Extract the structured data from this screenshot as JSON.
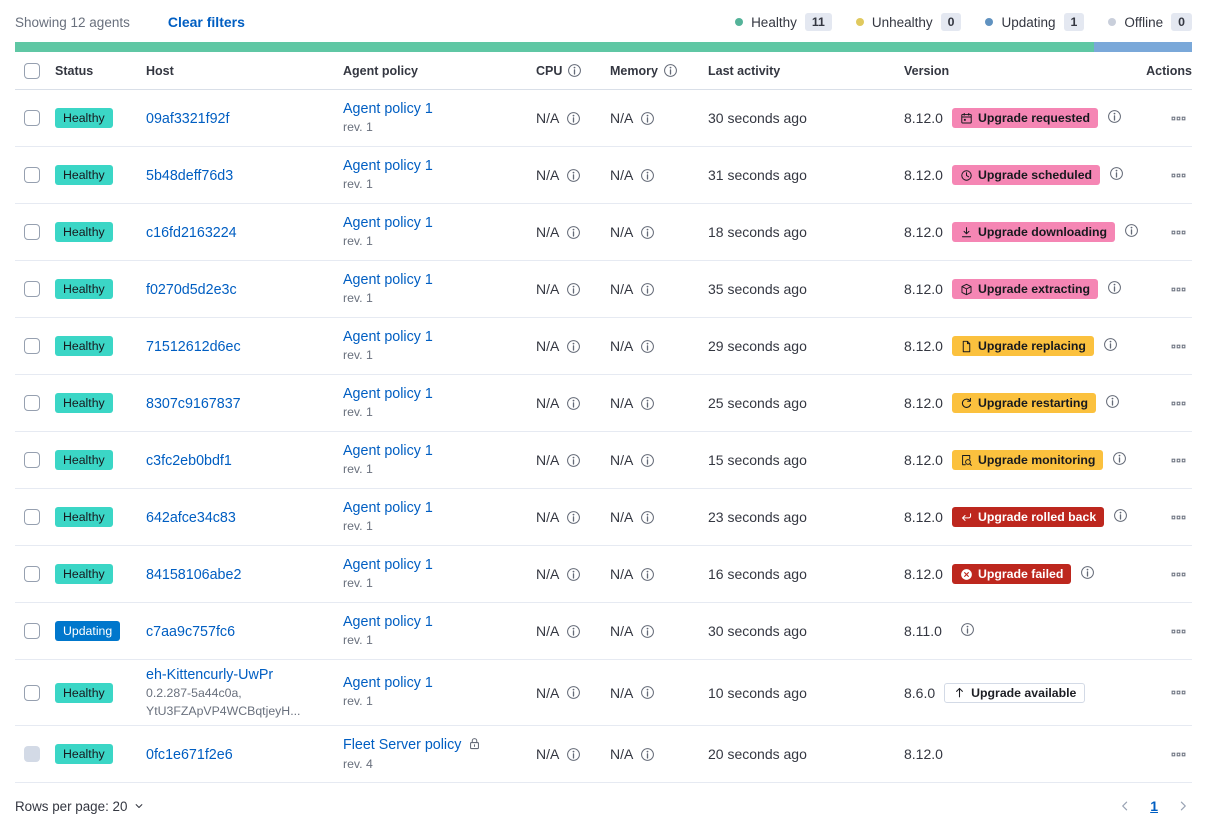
{
  "colors": {
    "healthy_badge": "#3BD6C6",
    "updating_badge": "#0077CC",
    "pink_badge": "#F586B4",
    "warning_badge": "#FBC13E",
    "danger_badge": "#BD271E",
    "link_blue": "#005EC2",
    "bar_healthy": "#5FC7A4",
    "bar_updating": "#7AA8D9",
    "dot_healthy": "#54B399",
    "dot_unhealthy": "#E0C95E",
    "dot_updating": "#6092C0",
    "dot_offline": "#C9CFDB"
  },
  "topbar": {
    "showing": "Showing 12 agents",
    "clear_filters": "Clear filters",
    "legend": [
      {
        "label": "Healthy",
        "count": "11",
        "dot": "dot-healthy"
      },
      {
        "label": "Unhealthy",
        "count": "0",
        "dot": "dot-unhealthy"
      },
      {
        "label": "Updating",
        "count": "1",
        "dot": "dot-updating"
      },
      {
        "label": "Offline",
        "count": "0",
        "dot": "dot-offline"
      }
    ]
  },
  "health_bar": {
    "segments": [
      {
        "status": "healthy",
        "fraction": 0.9167
      },
      {
        "status": "updating",
        "fraction": 0.0833
      }
    ]
  },
  "table": {
    "headers": {
      "status": "Status",
      "host": "Host",
      "policy": "Agent policy",
      "cpu": "CPU",
      "memory": "Memory",
      "last_activity": "Last activity",
      "version": "Version",
      "actions": "Actions"
    },
    "rows": [
      {
        "status": {
          "label": "Healthy",
          "variant": "healthy"
        },
        "host": {
          "name": "09af3321f92f",
          "sub": []
        },
        "policy": {
          "name": "Agent policy 1",
          "rev": "rev. 1",
          "locked": false
        },
        "cpu": "N/A",
        "memory": "N/A",
        "last_activity": "30 seconds ago",
        "version": "8.12.0",
        "version_info": false,
        "upgrade": {
          "label": "Upgrade requested",
          "variant": "pink",
          "icon": "calendar-icon",
          "info": true
        },
        "checkbox_disabled": false
      },
      {
        "status": {
          "label": "Healthy",
          "variant": "healthy"
        },
        "host": {
          "name": "5b48deff76d3",
          "sub": []
        },
        "policy": {
          "name": "Agent policy 1",
          "rev": "rev. 1",
          "locked": false
        },
        "cpu": "N/A",
        "memory": "N/A",
        "last_activity": "31 seconds ago",
        "version": "8.12.0",
        "version_info": false,
        "upgrade": {
          "label": "Upgrade scheduled",
          "variant": "pink",
          "icon": "clock-icon",
          "info": true
        },
        "checkbox_disabled": false
      },
      {
        "status": {
          "label": "Healthy",
          "variant": "healthy"
        },
        "host": {
          "name": "c16fd2163224",
          "sub": []
        },
        "policy": {
          "name": "Agent policy 1",
          "rev": "rev. 1",
          "locked": false
        },
        "cpu": "N/A",
        "memory": "N/A",
        "last_activity": "18 seconds ago",
        "version": "8.12.0",
        "version_info": false,
        "upgrade": {
          "label": "Upgrade downloading",
          "variant": "pink",
          "icon": "download-icon",
          "info": true
        },
        "checkbox_disabled": false
      },
      {
        "status": {
          "label": "Healthy",
          "variant": "healthy"
        },
        "host": {
          "name": "f0270d5d2e3c",
          "sub": []
        },
        "policy": {
          "name": "Agent policy 1",
          "rev": "rev. 1",
          "locked": false
        },
        "cpu": "N/A",
        "memory": "N/A",
        "last_activity": "35 seconds ago",
        "version": "8.12.0",
        "version_info": false,
        "upgrade": {
          "label": "Upgrade extracting",
          "variant": "pink",
          "icon": "package-icon",
          "info": true
        },
        "checkbox_disabled": false
      },
      {
        "status": {
          "label": "Healthy",
          "variant": "healthy"
        },
        "host": {
          "name": "71512612d6ec",
          "sub": []
        },
        "policy": {
          "name": "Agent policy 1",
          "rev": "rev. 1",
          "locked": false
        },
        "cpu": "N/A",
        "memory": "N/A",
        "last_activity": "29 seconds ago",
        "version": "8.12.0",
        "version_info": false,
        "upgrade": {
          "label": "Upgrade replacing",
          "variant": "warning",
          "icon": "document-icon",
          "info": true
        },
        "checkbox_disabled": false
      },
      {
        "status": {
          "label": "Healthy",
          "variant": "healthy"
        },
        "host": {
          "name": "8307c9167837",
          "sub": []
        },
        "policy": {
          "name": "Agent policy 1",
          "rev": "rev. 1",
          "locked": false
        },
        "cpu": "N/A",
        "memory": "N/A",
        "last_activity": "25 seconds ago",
        "version": "8.12.0",
        "version_info": false,
        "upgrade": {
          "label": "Upgrade restarting",
          "variant": "warning",
          "icon": "refresh-icon",
          "info": true
        },
        "checkbox_disabled": false
      },
      {
        "status": {
          "label": "Healthy",
          "variant": "healthy"
        },
        "host": {
          "name": "c3fc2eb0bdf1",
          "sub": []
        },
        "policy": {
          "name": "Agent policy 1",
          "rev": "rev. 1",
          "locked": false
        },
        "cpu": "N/A",
        "memory": "N/A",
        "last_activity": "15 seconds ago",
        "version": "8.12.0",
        "version_info": false,
        "upgrade": {
          "label": "Upgrade monitoring",
          "variant": "warning",
          "icon": "inspect-icon",
          "info": true
        },
        "checkbox_disabled": false
      },
      {
        "status": {
          "label": "Healthy",
          "variant": "healthy"
        },
        "host": {
          "name": "642afce34c83",
          "sub": []
        },
        "policy": {
          "name": "Agent policy 1",
          "rev": "rev. 1",
          "locked": false
        },
        "cpu": "N/A",
        "memory": "N/A",
        "last_activity": "23 seconds ago",
        "version": "8.12.0",
        "version_info": false,
        "upgrade": {
          "label": "Upgrade rolled back",
          "variant": "danger",
          "icon": "return-icon",
          "info": true
        },
        "checkbox_disabled": false
      },
      {
        "status": {
          "label": "Healthy",
          "variant": "healthy"
        },
        "host": {
          "name": "84158106abe2",
          "sub": []
        },
        "policy": {
          "name": "Agent policy 1",
          "rev": "rev. 1",
          "locked": false
        },
        "cpu": "N/A",
        "memory": "N/A",
        "last_activity": "16 seconds ago",
        "version": "8.12.0",
        "version_info": false,
        "upgrade": {
          "label": "Upgrade failed",
          "variant": "danger",
          "icon": "error-icon",
          "info": true
        },
        "checkbox_disabled": false
      },
      {
        "status": {
          "label": "Updating",
          "variant": "updating"
        },
        "host": {
          "name": "c7aa9c757fc6",
          "sub": []
        },
        "policy": {
          "name": "Agent policy 1",
          "rev": "rev. 1",
          "locked": false
        },
        "cpu": "N/A",
        "memory": "N/A",
        "last_activity": "30 seconds ago",
        "version": "8.11.0",
        "version_info": true,
        "upgrade": null,
        "checkbox_disabled": false
      },
      {
        "status": {
          "label": "Healthy",
          "variant": "healthy"
        },
        "host": {
          "name": "eh-Kittencurly-UwPr",
          "sub": [
            "0.2.287-5a44c0a,",
            "YtU3FZApVP4WCBqtjeyH..."
          ]
        },
        "policy": {
          "name": "Agent policy 1",
          "rev": "rev. 1",
          "locked": false
        },
        "cpu": "N/A",
        "memory": "N/A",
        "last_activity": "10 seconds ago",
        "version": "8.6.0",
        "version_info": false,
        "upgrade": {
          "label": "Upgrade available",
          "variant": "hollow",
          "icon": "arrow-up-icon",
          "info": false
        },
        "checkbox_disabled": false
      },
      {
        "status": {
          "label": "Healthy",
          "variant": "healthy"
        },
        "host": {
          "name": "0fc1e671f2e6",
          "sub": []
        },
        "policy": {
          "name": "Fleet Server policy",
          "rev": "rev. 4",
          "locked": true
        },
        "cpu": "N/A",
        "memory": "N/A",
        "last_activity": "20 seconds ago",
        "version": "8.12.0",
        "version_info": false,
        "upgrade": null,
        "checkbox_disabled": true
      }
    ]
  },
  "footer": {
    "rows_per_page": "Rows per page: 20",
    "page": "1"
  }
}
